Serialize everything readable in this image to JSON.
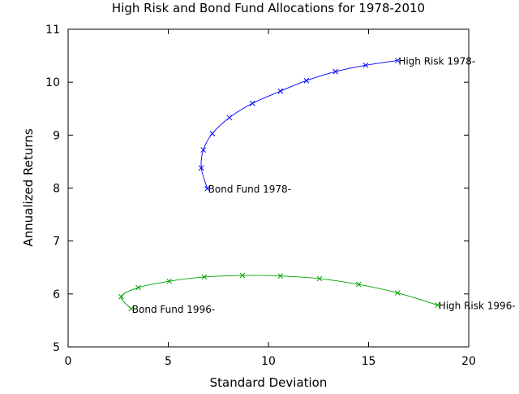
{
  "chart_data": {
    "type": "line",
    "title": "High Risk and Bond Fund Allocations for 1978-2010",
    "xlabel": "Standard Deviation",
    "ylabel": "Annualized Returns",
    "xlim": [
      0,
      20
    ],
    "ylim": [
      5,
      11
    ],
    "xticks": [
      0,
      5,
      10,
      15,
      20
    ],
    "yticks": [
      5,
      6,
      7,
      8,
      9,
      10,
      11
    ],
    "grid": false,
    "legend": "none",
    "series": [
      {
        "color": "#0000ff",
        "marker": "x",
        "x": [
          6.95,
          6.65,
          6.75,
          7.2,
          8.05,
          9.2,
          10.6,
          11.9,
          13.35,
          14.85,
          16.45
        ],
        "y": [
          7.99,
          8.38,
          8.72,
          9.03,
          9.33,
          9.6,
          9.83,
          10.03,
          10.2,
          10.32,
          10.41
        ]
      },
      {
        "color": "#00a000",
        "marker": "x",
        "x": [
          3.15,
          2.65,
          3.5,
          5.05,
          6.8,
          8.7,
          10.6,
          12.55,
          14.5,
          16.45,
          18.45
        ],
        "y": [
          5.72,
          5.95,
          6.12,
          6.24,
          6.32,
          6.35,
          6.34,
          6.29,
          6.18,
          6.02,
          5.79
        ]
      }
    ],
    "annotations": [
      {
        "text": "Bond Fund 1978-",
        "x": 6.95,
        "y": 7.99
      },
      {
        "text": "High Risk 1978-",
        "x": 16.45,
        "y": 10.41
      },
      {
        "text": "Bond Fund 1996-",
        "x": 3.15,
        "y": 5.72
      },
      {
        "text": "High Risk 1996-",
        "x": 18.45,
        "y": 5.79
      }
    ]
  }
}
